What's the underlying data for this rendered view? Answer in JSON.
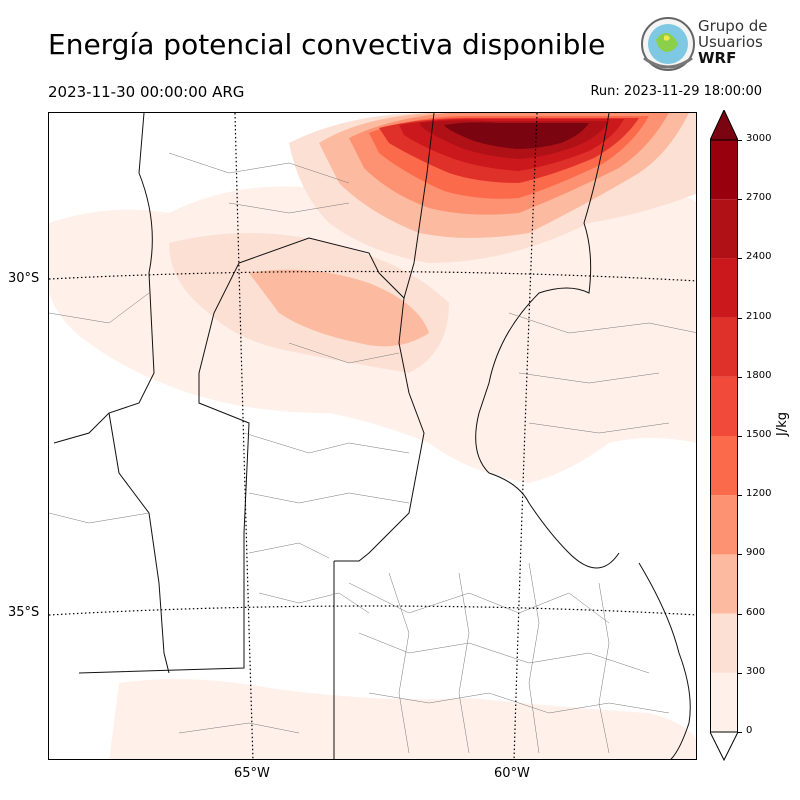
{
  "title": "Energía potencial convectiva disponible",
  "valid_time": "2023-11-30 00:00:00 ARG",
  "run_time": "Run: 2023-11-29 18:00:00",
  "logo": {
    "line1": "Grupo de",
    "line2": "Usuarios",
    "line3": "WRF"
  },
  "map": {
    "lat_labels": [
      "30°S",
      "35°S"
    ],
    "lon_labels": [
      "65°W",
      "60°W"
    ]
  },
  "colorbar": {
    "unit": "J/kg",
    "ticks": [
      "0",
      "300",
      "600",
      "900",
      "1200",
      "1500",
      "1800",
      "2100",
      "2400",
      "2700",
      "3000"
    ],
    "colors": [
      "#fff0ea",
      "#fde0d4",
      "#fcbba1",
      "#fc9272",
      "#fb6a4a",
      "#f24a3a",
      "#e0302a",
      "#cb181d",
      "#b01117",
      "#99000d",
      "#7a0510"
    ]
  }
}
